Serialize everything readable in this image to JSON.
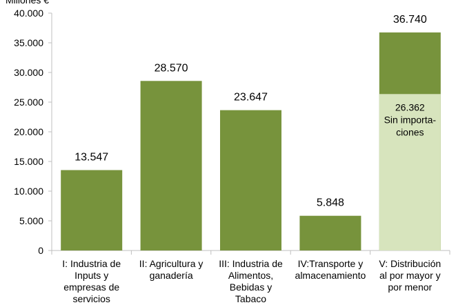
{
  "chart_data": {
    "type": "bar",
    "ylabel": "Millones €",
    "ylim": [
      0,
      40000
    ],
    "y_ticks": [
      "0",
      "5.000",
      "10.000",
      "15.000",
      "20.000",
      "25.000",
      "30.000",
      "35.000",
      "40.000"
    ],
    "y_tick_values": [
      0,
      5000,
      10000,
      15000,
      20000,
      25000,
      30000,
      35000,
      40000
    ],
    "grid": false,
    "categories": [
      [
        "I: Industria de",
        "Inputs y",
        "empresas de",
        "servicios"
      ],
      [
        "II: Agricultura y",
        "ganadería"
      ],
      [
        "III: Industria de",
        "Alimentos,",
        "Bebidas y",
        "Tabaco"
      ],
      [
        "IV:Transporte y",
        "almacenamiento"
      ],
      [
        "V: Distribución",
        "al por mayor y",
        "por menor"
      ]
    ],
    "values": [
      13547,
      28570,
      23647,
      5848,
      36740
    ],
    "value_labels": [
      "13.547",
      "28.570",
      "23.647",
      "5.848",
      "36.740"
    ],
    "sub_segment": {
      "category_index": 4,
      "value": 26362,
      "label_lines": [
        "26.362",
        "Sin importa-",
        "ciones"
      ]
    },
    "colors": {
      "bar": "#77933c",
      "sub_segment": "#d7e4bd",
      "axis": "#bfbfbf",
      "text": "#000000"
    }
  }
}
